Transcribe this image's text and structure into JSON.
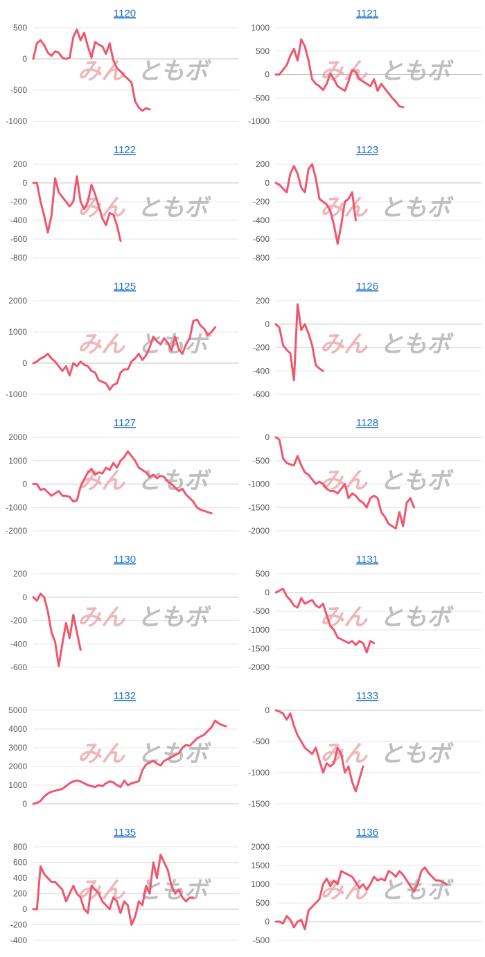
{
  "watermark": {
    "part1": "みん",
    "part2": "ともボ"
  },
  "colors": {
    "series": "#f0566e",
    "title_link": "#1a6fc9"
  },
  "chart_data": [
    {
      "title": "1120",
      "type": "line",
      "ylim": [
        -1000,
        500
      ],
      "yticks": [
        500,
        0,
        -500,
        -1000
      ],
      "values": [
        0,
        250,
        300,
        220,
        100,
        50,
        120,
        100,
        20,
        0,
        20,
        350,
        470,
        300,
        420,
        200,
        20,
        270,
        230,
        200,
        80,
        250,
        -20,
        -150,
        -200,
        -270,
        -320,
        -380,
        -680,
        -780,
        -830,
        -790,
        -810
      ]
    },
    {
      "title": "1121",
      "type": "line",
      "ylim": [
        -1000,
        1000
      ],
      "yticks": [
        1000,
        500,
        0,
        -500,
        -1000
      ],
      "values": [
        0,
        0,
        100,
        200,
        400,
        550,
        300,
        750,
        600,
        300,
        -100,
        -200,
        -250,
        -330,
        -200,
        20,
        -100,
        -250,
        -300,
        -350,
        -150,
        100,
        50,
        -100,
        -150,
        -200,
        -250,
        -100,
        -350,
        -200,
        -300,
        -400,
        -500,
        -580,
        -680,
        -700
      ]
    },
    {
      "title": "1122",
      "type": "line",
      "ylim": [
        -800,
        200
      ],
      "yticks": [
        200,
        0,
        -200,
        -400,
        -600,
        -800
      ],
      "values": [
        0,
        0,
        -200,
        -350,
        -530,
        -350,
        50,
        -100,
        -150,
        -200,
        -250,
        -200,
        70,
        -200,
        -280,
        -200,
        -20,
        -120,
        -250,
        -380,
        -450,
        -320,
        -340,
        -450,
        -620
      ]
    },
    {
      "title": "1123",
      "type": "line",
      "ylim": [
        -800,
        200
      ],
      "yticks": [
        200,
        0,
        -200,
        -400,
        -600,
        -800
      ],
      "values": [
        0,
        -20,
        -60,
        -100,
        100,
        180,
        100,
        -50,
        -100,
        150,
        200,
        50,
        -170,
        -200,
        -230,
        -300,
        -450,
        -650,
        -450,
        -200,
        -170,
        -100,
        -400
      ]
    },
    {
      "title": "1125",
      "type": "line",
      "ylim": [
        -1000,
        2000
      ],
      "yticks": [
        2000,
        1000,
        0,
        -1000
      ],
      "values": [
        0,
        50,
        150,
        200,
        300,
        150,
        50,
        -100,
        -250,
        -100,
        -400,
        0,
        -100,
        50,
        -50,
        -100,
        -250,
        -300,
        -550,
        -600,
        -650,
        -850,
        -700,
        -650,
        -300,
        -200,
        -200,
        50,
        150,
        300,
        100,
        250,
        500,
        850,
        700,
        600,
        800,
        650,
        400,
        850,
        450,
        300,
        600,
        800,
        1350,
        1400,
        1200,
        1100,
        900,
        1000,
        1150
      ]
    },
    {
      "title": "1126",
      "type": "line",
      "ylim": [
        -600,
        200
      ],
      "yticks": [
        200,
        0,
        -200,
        -400,
        -600
      ],
      "values": [
        0,
        -30,
        -180,
        -220,
        -250,
        -480,
        170,
        -50,
        0,
        -80,
        -180,
        -350,
        -380,
        -400
      ]
    },
    {
      "title": "1127",
      "type": "line",
      "ylim": [
        -2000,
        2000
      ],
      "yticks": [
        2000,
        1000,
        0,
        -1000,
        -2000
      ],
      "values": [
        0,
        0,
        -250,
        -200,
        -350,
        -500,
        -400,
        -300,
        -500,
        -500,
        -550,
        -750,
        -700,
        -100,
        200,
        500,
        650,
        400,
        500,
        450,
        700,
        600,
        900,
        700,
        1000,
        1150,
        1400,
        1200,
        1000,
        700,
        600,
        500,
        300,
        400,
        250,
        350,
        300,
        100,
        0,
        -150,
        -300,
        -200,
        -450,
        -600,
        -750,
        -1000,
        -1100,
        -1150,
        -1200,
        -1250
      ]
    },
    {
      "title": "1128",
      "type": "line",
      "ylim": [
        -2000,
        0
      ],
      "yticks": [
        0,
        -500,
        -1000,
        -1500,
        -2000
      ],
      "values": [
        0,
        -50,
        -450,
        -550,
        -580,
        -600,
        -400,
        -600,
        -750,
        -800,
        -900,
        -1000,
        -950,
        -1000,
        -1100,
        -1150,
        -1150,
        -1200,
        -1100,
        -1000,
        -1300,
        -1200,
        -1250,
        -1350,
        -1400,
        -1500,
        -1300,
        -1250,
        -1300,
        -1600,
        -1700,
        -1850,
        -1900,
        -1950,
        -1600,
        -1900,
        -1400,
        -1300,
        -1500
      ]
    },
    {
      "title": "1130",
      "type": "line",
      "ylim": [
        -600,
        200
      ],
      "yticks": [
        200,
        0,
        -200,
        -400,
        -600
      ],
      "values": [
        0,
        -30,
        30,
        0,
        -120,
        -300,
        -380,
        -590,
        -400,
        -220,
        -350,
        -150,
        -300,
        -450
      ]
    },
    {
      "title": "1131",
      "type": "line",
      "ylim": [
        -2000,
        500
      ],
      "yticks": [
        500,
        0,
        -500,
        -1000,
        -1500,
        -2000
      ],
      "values": [
        0,
        50,
        100,
        -100,
        -200,
        -350,
        -400,
        -150,
        -300,
        -250,
        -200,
        -350,
        -400,
        -300,
        -600,
        -900,
        -1000,
        -1200,
        -1250,
        -1300,
        -1350,
        -1300,
        -1400,
        -1300,
        -1350,
        -1600,
        -1300,
        -1350
      ]
    },
    {
      "title": "1132",
      "type": "line",
      "ylim": [
        0,
        5000
      ],
      "yticks": [
        5000,
        4000,
        3000,
        2000,
        1000,
        0
      ],
      "values": [
        0,
        50,
        150,
        400,
        550,
        650,
        700,
        750,
        800,
        950,
        1100,
        1200,
        1250,
        1200,
        1100,
        1000,
        950,
        900,
        1000,
        950,
        1100,
        1200,
        1150,
        1000,
        900,
        1250,
        1000,
        1100,
        1150,
        1200,
        1800,
        2100,
        2200,
        2300,
        2150,
        2050,
        2300,
        2400,
        2500,
        2600,
        2700,
        3000,
        3150,
        3100,
        3300,
        3500,
        3600,
        3700,
        3900,
        4100,
        4450,
        4300,
        4200,
        4150
      ]
    },
    {
      "title": "1133",
      "type": "line",
      "ylim": [
        -1500,
        0
      ],
      "yticks": [
        0,
        -500,
        -1000,
        -1500
      ],
      "values": [
        0,
        -20,
        -50,
        -150,
        -50,
        -250,
        -400,
        -500,
        -600,
        -650,
        -700,
        -600,
        -800,
        -1000,
        -850,
        -900,
        -850,
        -600,
        -700,
        -1000,
        -900,
        -1150,
        -1300,
        -1100,
        -900
      ]
    },
    {
      "title": "1135",
      "type": "line",
      "ylim": [
        -400,
        800
      ],
      "yticks": [
        800,
        600,
        400,
        200,
        0,
        -200,
        -400
      ],
      "values": [
        0,
        0,
        550,
        450,
        400,
        350,
        350,
        300,
        250,
        100,
        200,
        300,
        200,
        150,
        0,
        -50,
        300,
        250,
        200,
        100,
        50,
        0,
        150,
        100,
        -50,
        100,
        50,
        -200,
        -100,
        100,
        50,
        300,
        200,
        600,
        400,
        700,
        600,
        500,
        300,
        200,
        250,
        150,
        100,
        150,
        150
      ]
    },
    {
      "title": "1136",
      "type": "line",
      "ylim": [
        -500,
        2000
      ],
      "yticks": [
        2000,
        1500,
        1000,
        500,
        0,
        -500
      ],
      "values": [
        0,
        0,
        -50,
        150,
        50,
        -150,
        0,
        50,
        -200,
        300,
        400,
        500,
        600,
        1000,
        1150,
        950,
        1100,
        1000,
        1350,
        1300,
        1250,
        1200,
        1050,
        900,
        1000,
        850,
        1000,
        1200,
        1100,
        1150,
        1100,
        1350,
        1300,
        1200,
        1350,
        1250,
        1100,
        950,
        800,
        1000,
        1350,
        1450,
        1300,
        1200,
        1100,
        1100,
        1050,
        1000
      ]
    }
  ]
}
